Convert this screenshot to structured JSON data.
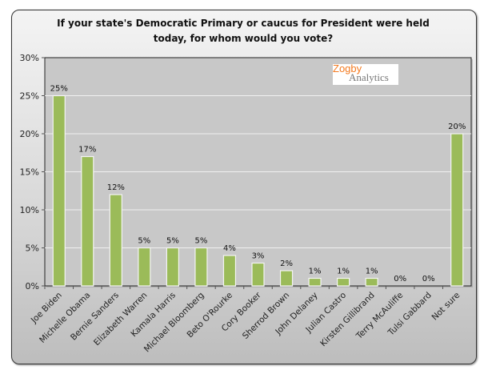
{
  "chart_data": {
    "type": "bar",
    "title": "If your state's Democratic Primary or caucus for President were held today, for whom would you vote?",
    "title_lines": [
      "If your state's Democratic Primary or caucus for President were held",
      "today, for whom would you vote?"
    ],
    "categories": [
      "Joe Biden",
      "Michelle Obama",
      "Bernie Sanders",
      "Elizabeth Warren",
      "Kamala Harris",
      "Michael Bloomberg",
      "Beto O'Rourke",
      "Cory Booker",
      "Sherrod Brown",
      "John Delaney",
      "Julian Castro",
      "Kirsten Gillibrand",
      "Terry McAuliffe",
      "Tulsi Gabbard",
      "Not sure"
    ],
    "values": [
      25,
      17,
      12,
      5,
      5,
      5,
      4,
      3,
      2,
      1,
      1,
      1,
      0,
      0,
      20
    ],
    "data_labels": [
      "25%",
      "17%",
      "12%",
      "5%",
      "5%",
      "5%",
      "4%",
      "3%",
      "2%",
      "1%",
      "1%",
      "1%",
      "0%",
      "0%",
      "20%"
    ],
    "ylim": [
      0,
      30
    ],
    "yticks": [
      "0%",
      "5%",
      "10%",
      "15%",
      "20%",
      "25%",
      "30%"
    ],
    "xlabel": "",
    "ylabel": "",
    "grid": true,
    "bar_color": "#9bbb59",
    "legend": "none"
  },
  "logo": {
    "line1": "Zogby",
    "line2": "Analytics"
  }
}
